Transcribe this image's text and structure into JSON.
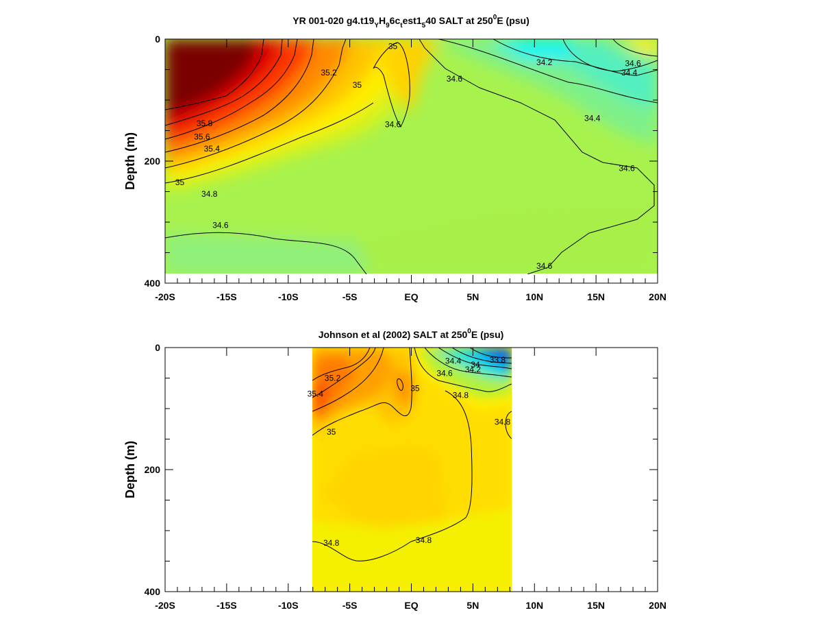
{
  "chart_data": [
    {
      "type": "heatmap",
      "title": "YR 001-020 g4.t19ᵧH₉6cₜest1₅40 SALT at 250⁰E (psu)",
      "title_parts": {
        "main": "YR 001-020 g4.t19",
        "sub1": "Y",
        "mid1": "H",
        "sub2": "9",
        "mid2": "6c",
        "sub3": "t",
        "mid3": "est1",
        "sub4": "5",
        "mid4": "40 SALT at 250",
        "sup": "0",
        "tail": "E (psu)"
      },
      "xlabel": "",
      "ylabel": "Depth (m)",
      "xlim": [
        -20,
        20
      ],
      "ylim": [
        400,
        0
      ],
      "x_ticks": [
        {
          "value": -20,
          "label": "-20S"
        },
        {
          "value": -15,
          "label": "-15S"
        },
        {
          "value": -10,
          "label": "-10S"
        },
        {
          "value": -5,
          "label": "-5S"
        },
        {
          "value": 0,
          "label": "EQ"
        },
        {
          "value": 5,
          "label": "5N"
        },
        {
          "value": 10,
          "label": "10N"
        },
        {
          "value": 15,
          "label": "15N"
        },
        {
          "value": 20,
          "label": "20N"
        }
      ],
      "y_ticks": [
        {
          "value": 0,
          "label": "0"
        },
        {
          "value": 200,
          "label": "200"
        },
        {
          "value": 400,
          "label": "400"
        }
      ],
      "data_extent": {
        "x": [
          -20,
          20
        ],
        "y": [
          0,
          380
        ]
      },
      "contour_labels": [
        {
          "text": "35",
          "x": -1.5,
          "y": 12
        },
        {
          "text": "35.2",
          "x": -6.7,
          "y": 55
        },
        {
          "text": "35",
          "x": -4.4,
          "y": 75
        },
        {
          "text": "34.6",
          "x": 3.5,
          "y": 65
        },
        {
          "text": "34.2",
          "x": 10.8,
          "y": 38
        },
        {
          "text": "34.6",
          "x": 18.0,
          "y": 40
        },
        {
          "text": "34.4",
          "x": 17.7,
          "y": 55
        },
        {
          "text": "34.6",
          "x": -1.5,
          "y": 140
        },
        {
          "text": "34.4",
          "x": 14.7,
          "y": 130
        },
        {
          "text": "35.8",
          "x": -16.8,
          "y": 138
        },
        {
          "text": "35.6",
          "x": -17.0,
          "y": 160
        },
        {
          "text": "35.4",
          "x": -16.2,
          "y": 180
        },
        {
          "text": "34.6",
          "x": 17.5,
          "y": 212
        },
        {
          "text": "35",
          "x": -18.8,
          "y": 235
        },
        {
          "text": "34.8",
          "x": -16.4,
          "y": 254
        },
        {
          "text": "34.6",
          "x": -15.5,
          "y": 305
        },
        {
          "text": "34.6",
          "x": 10.8,
          "y": 372
        }
      ]
    },
    {
      "type": "heatmap",
      "title": "Johnson et al (2002) SALT at 250⁰E (psu)",
      "title_parts": {
        "main": "Johnson et al (2002) SALT at 250",
        "sup": "0",
        "tail": "E (psu)"
      },
      "xlabel": "",
      "ylabel": "Depth (m)",
      "xlim": [
        -20,
        20
      ],
      "ylim": [
        400,
        0
      ],
      "x_ticks": [
        {
          "value": -20,
          "label": "-20S"
        },
        {
          "value": -15,
          "label": "-15S"
        },
        {
          "value": -10,
          "label": "-10S"
        },
        {
          "value": -5,
          "label": "-5S"
        },
        {
          "value": 0,
          "label": "EQ"
        },
        {
          "value": 5,
          "label": "5N"
        },
        {
          "value": 10,
          "label": "10N"
        },
        {
          "value": 15,
          "label": "15N"
        },
        {
          "value": 20,
          "label": "20N"
        }
      ],
      "y_ticks": [
        {
          "value": 0,
          "label": "0"
        },
        {
          "value": 200,
          "label": "200"
        },
        {
          "value": 400,
          "label": "400"
        }
      ],
      "data_extent": {
        "x": [
          -8,
          8.2
        ],
        "y": [
          0,
          400
        ]
      },
      "contour_labels": [
        {
          "text": "34.4",
          "x": 3.4,
          "y": 22
        },
        {
          "text": "34",
          "x": 5.2,
          "y": 28
        },
        {
          "text": "33.8",
          "x": 7.0,
          "y": 20
        },
        {
          "text": "34.2",
          "x": 5.0,
          "y": 36
        },
        {
          "text": "35.2",
          "x": -6.4,
          "y": 50
        },
        {
          "text": "34.6",
          "x": 2.7,
          "y": 42
        },
        {
          "text": "35",
          "x": 0.3,
          "y": 67
        },
        {
          "text": "35.4",
          "x": -7.8,
          "y": 76
        },
        {
          "text": "34.8",
          "x": 4.0,
          "y": 78
        },
        {
          "text": "34.8",
          "x": 7.4,
          "y": 122
        },
        {
          "text": "35",
          "x": -6.5,
          "y": 138
        },
        {
          "text": "34.8",
          "x": -6.5,
          "y": 320
        },
        {
          "text": "34.8",
          "x": 1.0,
          "y": 316
        }
      ]
    }
  ]
}
